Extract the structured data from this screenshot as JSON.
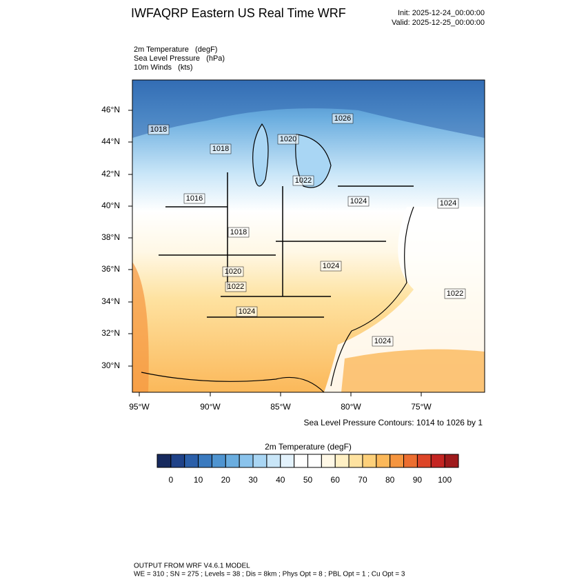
{
  "header": {
    "title": "IWFAQRP Eastern US Real Time WRF",
    "init": "Init: 2025-12-24_00:00:00",
    "valid": "Valid: 2025-12-25_00:00:00"
  },
  "fields": [
    "2m Temperature   (degF)",
    "Sea Level Pressure   (hPa)",
    "10m Winds   (kts)"
  ],
  "map": {
    "lat_labels": [
      "46°N",
      "44°N",
      "42°N",
      "40°N",
      "38°N",
      "36°N",
      "34°N",
      "32°N",
      "30°N"
    ],
    "lon_labels": [
      "95°W",
      "90°W",
      "85°W",
      "80°W",
      "75°W"
    ],
    "contour_labels": [
      "1018",
      "1018",
      "1020",
      "1026",
      "1022",
      "1016",
      "1024",
      "1024",
      "1018",
      "1020",
      "1022",
      "1024",
      "1024",
      "1022",
      "1024"
    ],
    "contour_note": "Sea Level Pressure Contours: 1014 to 1026 by 1"
  },
  "colorbar": {
    "title": "2m Temperature  (degF)",
    "levels": [
      -5,
      0,
      5,
      10,
      15,
      20,
      25,
      30,
      35,
      40,
      45,
      50,
      55,
      60,
      65,
      70,
      75,
      80,
      85,
      90,
      95,
      100,
      105
    ],
    "colors": [
      "#172a5e",
      "#1f4288",
      "#2b5fa9",
      "#3a7abf",
      "#4f94d0",
      "#6aaddf",
      "#8ac3ec",
      "#a9d6f4",
      "#c9e6f8",
      "#e3f2fc",
      "#ffffff",
      "#ffffff",
      "#fff8e6",
      "#fff0c4",
      "#fee2a0",
      "#fdd07a",
      "#fbb85a",
      "#f5953f",
      "#ec6e30",
      "#dd4528",
      "#c42522",
      "#9e1a1c"
    ],
    "ticks": [
      0,
      10,
      20,
      30,
      40,
      50,
      60,
      70,
      80,
      90,
      100
    ]
  },
  "footer": {
    "line1": "OUTPUT FROM WRF V4.6.1 MODEL",
    "line2": "WE = 310 ; SN = 275 ; Levels = 38 ; Dis = 8km ; Phys Opt = 8 ; PBL Opt = 1 ; Cu Opt = 3"
  }
}
